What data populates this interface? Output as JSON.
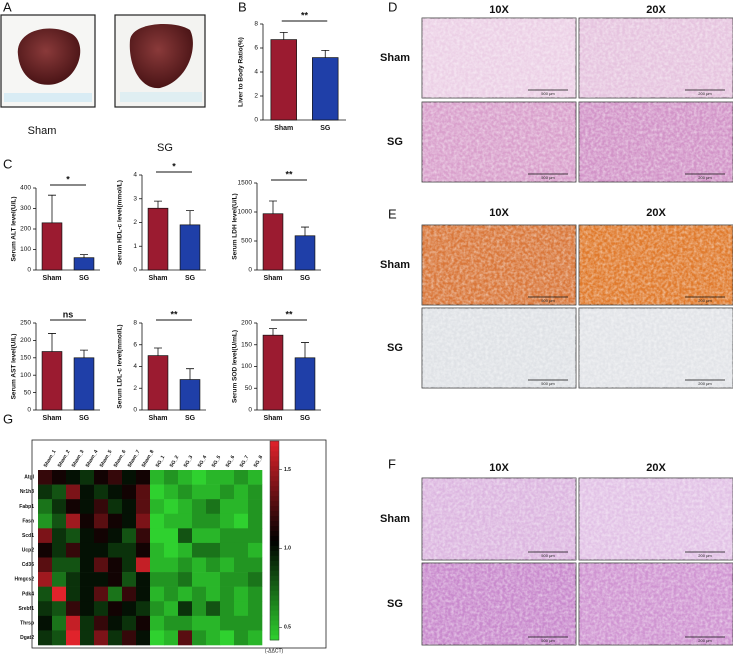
{
  "panel_labels": [
    "A",
    "B",
    "C",
    "D",
    "E",
    "F",
    "G"
  ],
  "panel_a": {
    "captions": [
      "Sham",
      "SG"
    ]
  },
  "histology": [
    {
      "columns": [
        "10X",
        "20X"
      ],
      "rows": [
        "Sham",
        "SG"
      ],
      "scale_bars": [
        "500 μm",
        "200 μm"
      ]
    },
    {
      "columns": [
        "10X",
        "20X"
      ],
      "rows": [
        "Sham",
        "SG"
      ],
      "scale_bars": [
        "500 μm",
        "200 μm"
      ]
    },
    {
      "columns": [
        "10X",
        "20X"
      ],
      "rows": [
        "Sham",
        "SG"
      ],
      "scale_bars": [
        "500 μm",
        "200 μm"
      ]
    }
  ],
  "chart_data": [
    {
      "type": "bar",
      "ylabel": "Liver to Body Ratio(%)",
      "categories": [
        "Sham",
        "SG"
      ],
      "values": [
        6.7,
        5.2
      ],
      "errors": [
        0.6,
        0.6
      ],
      "colors": [
        "#9b1b30",
        "#1f3fa8"
      ],
      "significance": "**",
      "ylim": [
        0,
        8
      ],
      "yticks": [
        0,
        2,
        4,
        6,
        8
      ]
    },
    {
      "type": "bar",
      "ylabel": "Serum ALT level(U/L)",
      "categories": [
        "Sham",
        "SG"
      ],
      "values": [
        230,
        60
      ],
      "errors": [
        135,
        15
      ],
      "colors": [
        "#9b1b30",
        "#1f3fa8"
      ],
      "significance": "*",
      "ylim": [
        0,
        400
      ],
      "yticks": [
        0,
        100,
        200,
        300,
        400
      ]
    },
    {
      "type": "bar",
      "ylabel": "Serum HDL-c level(mmol/L)",
      "categories": [
        "Sham",
        "SG"
      ],
      "values": [
        2.6,
        1.9
      ],
      "errors": [
        0.3,
        0.6
      ],
      "colors": [
        "#9b1b30",
        "#1f3fa8"
      ],
      "significance": "*",
      "ylim": [
        0,
        4
      ],
      "yticks": [
        0,
        1,
        2,
        3,
        4
      ]
    },
    {
      "type": "bar",
      "ylabel": "Serum LDH level(U/L)",
      "categories": [
        "Sham",
        "SG"
      ],
      "values": [
        970,
        590
      ],
      "errors": [
        220,
        150
      ],
      "colors": [
        "#9b1b30",
        "#1f3fa8"
      ],
      "significance": "**",
      "ylim": [
        0,
        1500
      ],
      "yticks": [
        0,
        500,
        1000,
        1500
      ]
    },
    {
      "type": "bar",
      "ylabel": "Serum AST level(U/L)",
      "categories": [
        "Sham",
        "SG"
      ],
      "values": [
        168,
        150
      ],
      "errors": [
        52,
        22
      ],
      "colors": [
        "#9b1b30",
        "#1f3fa8"
      ],
      "significance": "ns",
      "ylim": [
        0,
        250
      ],
      "yticks": [
        0,
        50,
        100,
        150,
        200,
        250
      ]
    },
    {
      "type": "bar",
      "ylabel": "Serum LDL-c level(mmol/L)",
      "categories": [
        "Sham",
        "SG"
      ],
      "values": [
        5.0,
        2.8
      ],
      "errors": [
        0.7,
        1.0
      ],
      "colors": [
        "#9b1b30",
        "#1f3fa8"
      ],
      "significance": "**",
      "ylim": [
        0,
        8
      ],
      "yticks": [
        0,
        2,
        4,
        6,
        8
      ]
    },
    {
      "type": "bar",
      "ylabel": "Serum SOD level(U/mL)",
      "categories": [
        "Sham",
        "SG"
      ],
      "values": [
        172,
        120
      ],
      "errors": [
        15,
        35
      ],
      "colors": [
        "#9b1b30",
        "#1f3fa8"
      ],
      "significance": "**",
      "ylim": [
        0,
        200
      ],
      "yticks": [
        0,
        50,
        100,
        150,
        200
      ]
    },
    {
      "type": "heatmap",
      "x": [
        "Sham_1",
        "Sham_2",
        "Sham_3",
        "Sham_4",
        "Sham_5",
        "Sham_6",
        "Sham_7",
        "Sham_8",
        "SG_1",
        "SG_2",
        "SG_3",
        "SG_4",
        "SG_5",
        "SG_6",
        "SG_7",
        "SG_8"
      ],
      "y": [
        "Atgl",
        "Nr1h3",
        "Fabp1",
        "Fasn",
        "Scd1",
        "Ucp2",
        "Cd36",
        "Hmgcs2",
        "Pdk4",
        "Srebf1",
        "Thrsp",
        "Dgat2"
      ],
      "values": [
        [
          1.2,
          1.1,
          1.0,
          0.9,
          1.1,
          1.2,
          1.0,
          1.1,
          0.5,
          0.6,
          0.5,
          0.4,
          0.5,
          0.5,
          0.6,
          0.5
        ],
        [
          0.9,
          0.8,
          1.4,
          1.0,
          0.9,
          1.0,
          1.1,
          1.3,
          0.4,
          0.5,
          0.6,
          0.5,
          0.5,
          0.6,
          0.5,
          0.6
        ],
        [
          0.7,
          0.9,
          1.1,
          1.0,
          1.2,
          0.9,
          1.0,
          1.3,
          0.5,
          0.4,
          0.5,
          0.6,
          0.7,
          0.5,
          0.5,
          0.6
        ],
        [
          0.6,
          0.8,
          1.5,
          1.1,
          1.3,
          1.1,
          1.0,
          1.4,
          0.3,
          0.5,
          0.5,
          0.6,
          0.6,
          0.5,
          0.4,
          0.6
        ],
        [
          1.4,
          0.9,
          0.8,
          1.0,
          1.1,
          1.0,
          0.8,
          1.2,
          0.4,
          0.4,
          0.8,
          0.5,
          0.5,
          0.6,
          0.6,
          0.6
        ],
        [
          1.1,
          0.9,
          1.2,
          1.0,
          1.0,
          0.9,
          0.9,
          1.1,
          0.5,
          0.4,
          0.5,
          0.7,
          0.7,
          0.6,
          0.6,
          0.5
        ],
        [
          1.3,
          0.8,
          0.8,
          1.0,
          1.3,
          1.1,
          0.9,
          1.6,
          0.5,
          0.5,
          0.6,
          0.5,
          0.6,
          0.5,
          0.6,
          0.6
        ],
        [
          1.5,
          0.7,
          0.9,
          1.0,
          1.0,
          1.1,
          0.8,
          1.0,
          0.6,
          0.6,
          0.7,
          0.5,
          0.5,
          0.6,
          0.6,
          0.7
        ],
        [
          0.8,
          1.7,
          0.9,
          1.0,
          1.3,
          0.7,
          1.2,
          1.0,
          0.5,
          0.6,
          0.5,
          0.6,
          0.5,
          0.6,
          0.5,
          0.6
        ],
        [
          0.9,
          0.8,
          1.2,
          1.0,
          0.9,
          1.1,
          1.0,
          0.9,
          0.6,
          0.5,
          0.9,
          0.6,
          0.8,
          0.6,
          0.5,
          0.6
        ],
        [
          1.0,
          0.7,
          1.6,
          0.9,
          1.2,
          1.0,
          0.9,
          1.1,
          0.5,
          0.6,
          0.6,
          0.5,
          0.5,
          0.6,
          0.6,
          0.6
        ],
        [
          0.9,
          0.8,
          1.7,
          0.9,
          1.4,
          0.9,
          1.2,
          1.0,
          0.4,
          0.5,
          1.3,
          0.6,
          0.5,
          0.4,
          0.6,
          0.5
        ]
      ],
      "colors": [
        "#2fd12f",
        "#000000",
        "#e0232b"
      ],
      "clim": [
        0.42,
        1.68
      ],
      "cticks": [
        0.5,
        {
          "value": 1,
          "label": "1.0"
        },
        1.5
      ],
      "colorbar_label": "(-ΔΔCT)"
    }
  ]
}
